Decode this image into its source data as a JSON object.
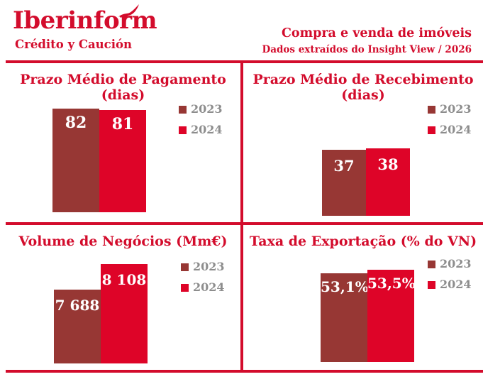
{
  "header": {
    "logo_title": "Iberinform",
    "logo_subtitle": "Crédito y Caución",
    "title": "Compra e venda de imóveis",
    "subtitle": "Dados extraídos do Insight View / 2026"
  },
  "colors": {
    "brand_red": "#D30C2C",
    "bar_2023": "#973734",
    "bar_2024": "#DE0428",
    "legend_text": "#8D8D8D",
    "bar_value_text": "#FFFFFF"
  },
  "legend": {
    "position": "right",
    "items": [
      {
        "label": "2023",
        "color": "#973734"
      },
      {
        "label": "2024",
        "color": "#DE0428"
      }
    ]
  },
  "chart_data": [
    {
      "id": "prazo-pagamento",
      "type": "bar",
      "title": "Prazo Médio de Pagamento (dias)",
      "categories": [
        "2023",
        "2024"
      ],
      "values": [
        82,
        81
      ],
      "labels": [
        "82",
        "81"
      ],
      "ylim": [
        0,
        100
      ],
      "grid": false,
      "legend_position": "right"
    },
    {
      "id": "prazo-recebimento",
      "type": "bar",
      "title": "Prazo Médio de Recebimento (dias)",
      "categories": [
        "2023",
        "2024"
      ],
      "values": [
        37,
        38
      ],
      "labels": [
        "37",
        "38"
      ],
      "ylim": [
        0,
        100
      ],
      "grid": false,
      "legend_position": "right"
    },
    {
      "id": "volume-negocios",
      "type": "bar",
      "title": "Volume de Negócios (Mm€)",
      "categories": [
        "2023",
        "2024"
      ],
      "values": [
        7688,
        8108
      ],
      "labels": [
        "7 688",
        "8 108"
      ],
      "ylim": [
        6500,
        8300
      ],
      "grid": false,
      "legend_position": "right"
    },
    {
      "id": "taxa-exportacao",
      "type": "bar",
      "title": "Taxa de Exportação (% do VN)",
      "categories": [
        "2023",
        "2024"
      ],
      "values": [
        53.1,
        53.5
      ],
      "labels": [
        "53,1%",
        "53,5%"
      ],
      "ylim": [
        43,
        55
      ],
      "grid": false,
      "legend_position": "right"
    }
  ]
}
